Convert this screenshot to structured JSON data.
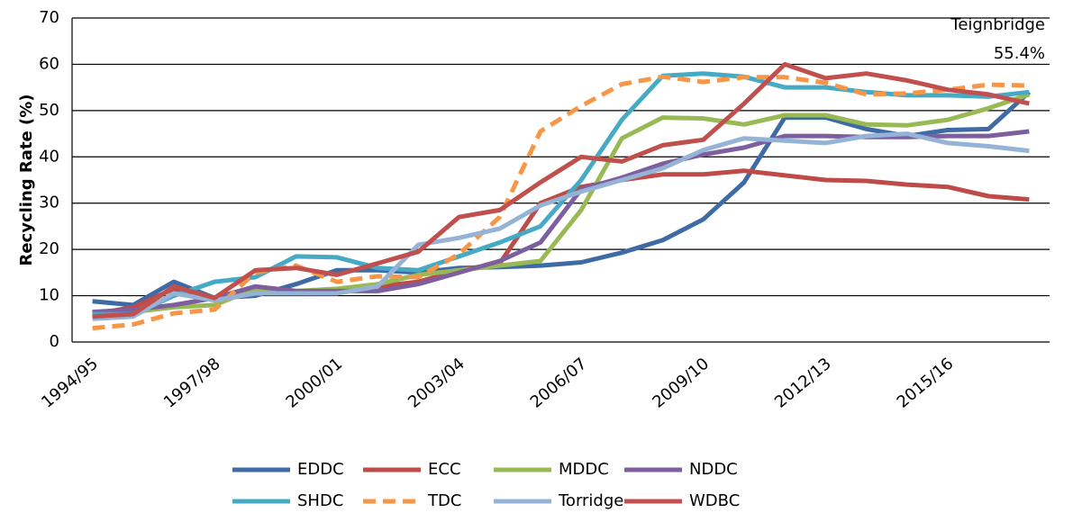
{
  "chart_data": {
    "type": "line",
    "y_label": "Recycling Rate (%)",
    "annotation": [
      "Teignbridge",
      "55.4%"
    ],
    "categories": [
      "1994/95",
      null,
      null,
      "1997/98",
      null,
      null,
      "2000/01",
      null,
      null,
      "2003/04",
      null,
      null,
      "2006/07",
      null,
      null,
      "2009/10",
      null,
      null,
      "2012/13",
      null,
      null,
      "2015/16",
      null,
      null
    ],
    "ylim": [
      0,
      70
    ],
    "yticks": [
      0,
      10,
      20,
      30,
      40,
      50,
      60,
      70
    ],
    "grid": true,
    "series": [
      {
        "name": "EDDC",
        "color": "#3e6aa6",
        "dash": false,
        "values": [
          8.8,
          8,
          13,
          9.5,
          10,
          12.5,
          15.5,
          15.5,
          15,
          16,
          16.2,
          16.5,
          17.2,
          19.3,
          22,
          26.5,
          34.5,
          48.5,
          48.5,
          46,
          44.5,
          45.8,
          46,
          54
        ]
      },
      {
        "name": "ECC",
        "color": "#be4b48",
        "dash": false,
        "values": [
          6,
          7.5,
          11.5,
          9,
          12,
          11,
          11,
          12,
          13,
          15.5,
          17,
          30,
          33.5,
          35,
          36.2,
          36.2,
          37,
          36,
          35,
          34.8,
          34,
          33.5,
          31.5,
          30.8
        ]
      },
      {
        "name": "MDDC",
        "color": "#98b954",
        "dash": false,
        "values": [
          6,
          6.5,
          7.5,
          8,
          11.5,
          11,
          11.5,
          12.5,
          14.5,
          15.5,
          16.5,
          17.5,
          28.5,
          44,
          48.5,
          48.3,
          47,
          49,
          49,
          47,
          46.8,
          48,
          50.5,
          53.5
        ]
      },
      {
        "name": "NDDC",
        "color": "#7d5fa0",
        "dash": false,
        "values": [
          6.5,
          7,
          8,
          9.5,
          12,
          11,
          11,
          11,
          12.5,
          15,
          17.5,
          21.5,
          33,
          35.5,
          38.5,
          40.5,
          42,
          44.5,
          44.5,
          44.3,
          44.3,
          44.5,
          44.5,
          45.5
        ]
      },
      {
        "name": "SHDC",
        "color": "#46aac5",
        "dash": false,
        "values": [
          6,
          6,
          10,
          13,
          14,
          18.5,
          18.3,
          16,
          15.5,
          18.5,
          21.5,
          25,
          35,
          48,
          57.5,
          58,
          57.3,
          55,
          55,
          54,
          53.3,
          53.3,
          53,
          54
        ]
      },
      {
        "name": "TDC",
        "color": "#f79646",
        "dash": true,
        "values": [
          3,
          3.8,
          6.2,
          7,
          15,
          16.5,
          13,
          14.2,
          14,
          19,
          27,
          45.5,
          51,
          55.7,
          57.3,
          56.2,
          57.2,
          57.2,
          56,
          53.5,
          53.7,
          54.5,
          55.6,
          55.4
        ]
      },
      {
        "name": "Torridge",
        "color": "#95b3d7",
        "dash": false,
        "values": [
          5,
          5.5,
          10.5,
          9,
          10.5,
          10.5,
          10.5,
          12,
          21,
          22.5,
          24.5,
          29.5,
          32.5,
          35,
          37.5,
          41.5,
          44,
          43.5,
          43,
          44.5,
          45,
          43,
          42.3,
          41.3
        ]
      },
      {
        "name": "WDBC",
        "color": "#c0504d",
        "dash": false,
        "values": [
          5.5,
          6,
          12,
          9.5,
          15.5,
          16,
          14.5,
          17,
          19.5,
          27,
          28.5,
          34.5,
          40,
          39,
          42.5,
          43.7,
          51.5,
          60,
          57,
          58,
          56.5,
          54.5,
          53.5,
          51.5
        ]
      }
    ]
  }
}
